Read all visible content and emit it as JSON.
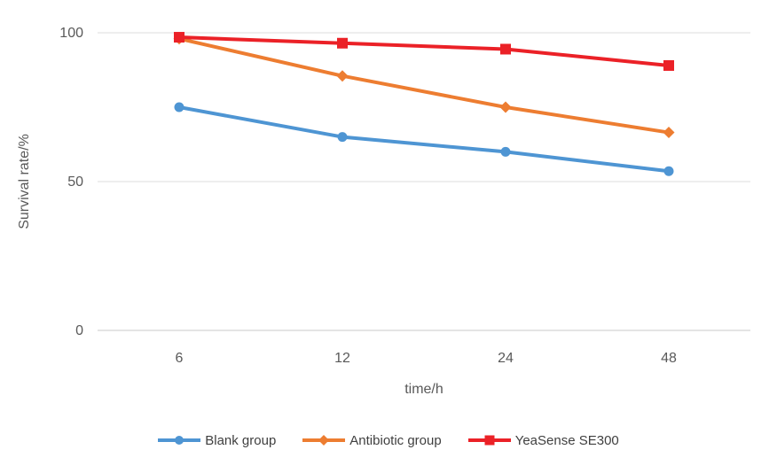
{
  "chart_data": {
    "type": "line",
    "title": "",
    "xlabel": "time/h",
    "ylabel": "Survival rate/%",
    "categories": [
      "6",
      "12",
      "24",
      "48"
    ],
    "yticks": [
      0,
      50,
      100
    ],
    "ylim": [
      0,
      100
    ],
    "grid": true,
    "legend_position": "bottom",
    "series": [
      {
        "name": "Blank group",
        "color": "#4E95D3",
        "marker": "circle",
        "values": [
          75,
          65,
          60,
          53.5
        ]
      },
      {
        "name": "Antibiotic group",
        "color": "#ED7D31",
        "marker": "diamond",
        "values": [
          98,
          85.5,
          75,
          66.5
        ]
      },
      {
        "name": "YeaSense SE300",
        "color": "#EB2127",
        "marker": "square",
        "values": [
          98.5,
          96.5,
          94.5,
          89
        ]
      }
    ]
  },
  "style_colors": {
    "gridline": "#DCDCDC",
    "axis_line": "#C9C9C9",
    "tick_text": "#595959",
    "legend_text": "#3F3F3F",
    "background": "#FFFFFF"
  }
}
